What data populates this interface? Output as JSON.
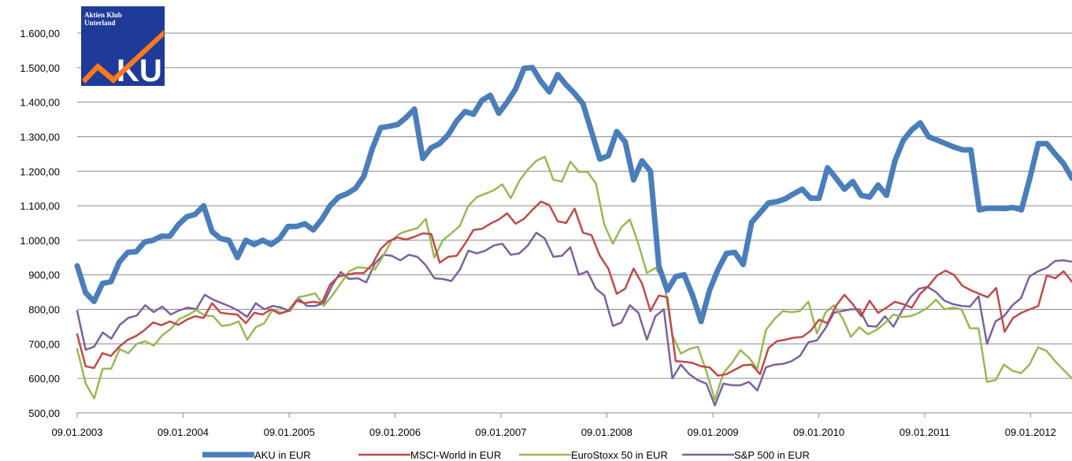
{
  "logo": {
    "line1": "Aktien Klub",
    "line2": "Unterland",
    "mark": "AKU",
    "mark_tail": "KU",
    "bg_color": "#1f3b9a",
    "arrow_color": "#ff7a1a"
  },
  "chart_data": {
    "type": "line",
    "ylim": [
      500,
      1600
    ],
    "yticks": [
      500,
      600,
      700,
      800,
      900,
      1000,
      1100,
      1200,
      1300,
      1400,
      1500,
      1600
    ],
    "ytick_labels": [
      "500,00",
      "600,00",
      "700,00",
      "800,00",
      "900,00",
      "1.000,00",
      "1.100,00",
      "1.200,00",
      "1.300,00",
      "1.400,00",
      "1.500,00",
      "1.600,00"
    ],
    "xlim": [
      "09.01.2003",
      "31.05.2012"
    ],
    "xtick_labels": [
      "09.01.2003",
      "09.01.2004",
      "09.01.2005",
      "09.01.2006",
      "09.01.2007",
      "09.01.2008",
      "09.01.2009",
      "09.01.2010",
      "09.01.2011",
      "09.01.2012"
    ],
    "grid": "horizontal",
    "legend_position": "bottom",
    "series": [
      {
        "name": "AKU in EUR",
        "color": "#4a7ebb",
        "values": [
          926,
          848,
          823,
          875,
          880,
          937,
          965,
          967,
          995,
          1000,
          1012,
          1012,
          1045,
          1068,
          1075,
          1100,
          1025,
          1005,
          1000,
          950,
          1000,
          988,
          1000,
          988,
          1005,
          1040,
          1040,
          1048,
          1030,
          1060,
          1100,
          1125,
          1135,
          1150,
          1185,
          1265,
          1326,
          1330,
          1335,
          1355,
          1380,
          1237,
          1268,
          1280,
          1305,
          1345,
          1373,
          1365,
          1405,
          1420,
          1368,
          1400,
          1438,
          1498,
          1500,
          1460,
          1430,
          1480,
          1450,
          1425,
          1395,
          1315,
          1235,
          1245,
          1315,
          1285,
          1175,
          1230,
          1200,
          925,
          855,
          895,
          900,
          840,
          765,
          855,
          915,
          962,
          965,
          930,
          1052,
          1080,
          1108,
          1112,
          1120,
          1135,
          1148,
          1122,
          1122,
          1210,
          1180,
          1148,
          1170,
          1130,
          1125,
          1160,
          1130,
          1230,
          1290,
          1320,
          1340,
          1300,
          1290,
          1280,
          1270,
          1262,
          1262,
          1088,
          1093,
          1093,
          1092,
          1095,
          1088,
          1180,
          1280,
          1280,
          1250,
          1222,
          1180
        ]
      },
      {
        "name": "MSCI-World in EUR",
        "color": "#be4b48",
        "values": [
          728,
          635,
          630,
          673,
          665,
          692,
          712,
          723,
          740,
          762,
          754,
          765,
          755,
          770,
          780,
          775,
          818,
          790,
          787,
          785,
          760,
          790,
          785,
          800,
          787,
          795,
          825,
          818,
          822,
          818,
          872,
          895,
          900,
          905,
          905,
          930,
          975,
          998,
          1008,
          1002,
          1010,
          1020,
          1018,
          935,
          952,
          955,
          990,
          1030,
          1033,
          1048,
          1060,
          1078,
          1048,
          1062,
          1088,
          1112,
          1102,
          1055,
          1050,
          1092,
          1022,
          1015,
          955,
          918,
          845,
          860,
          918,
          875,
          795,
          840,
          835,
          650,
          648,
          645,
          635,
          632,
          608,
          612,
          625,
          638,
          640,
          612,
          688,
          708,
          712,
          718,
          720,
          738,
          770,
          760,
          810,
          842,
          815,
          780,
          825,
          790,
          805,
          822,
          815,
          805,
          845,
          868,
          898,
          912,
          900,
          868,
          855,
          845,
          835,
          862,
          735,
          775,
          790,
          800,
          810,
          898,
          890,
          910,
          880
        ]
      },
      {
        "name": "EuroStoxx 50 in EUR",
        "color": "#98b954",
        "values": [
          685,
          585,
          542,
          628,
          628,
          685,
          673,
          700,
          708,
          695,
          725,
          743,
          772,
          783,
          798,
          782,
          780,
          752,
          755,
          765,
          712,
          748,
          760,
          800,
          790,
          798,
          835,
          840,
          846,
          810,
          840,
          875,
          910,
          922,
          920,
          915,
          955,
          1000,
          1020,
          1028,
          1035,
          1062,
          950,
          1000,
          1020,
          1042,
          1100,
          1125,
          1135,
          1145,
          1162,
          1122,
          1172,
          1205,
          1230,
          1242,
          1175,
          1170,
          1228,
          1198,
          1198,
          1165,
          1045,
          990,
          1038,
          1060,
          990,
          905,
          920,
          885,
          725,
          672,
          685,
          692,
          620,
          538,
          615,
          645,
          682,
          660,
          628,
          740,
          772,
          795,
          792,
          795,
          822,
          730,
          790,
          812,
          775,
          720,
          748,
          728,
          740,
          760,
          785,
          778,
          780,
          790,
          805,
          828,
          800,
          805,
          800,
          745,
          745,
          590,
          595,
          640,
          622,
          615,
          640,
          690,
          680,
          650,
          625,
          600
        ]
      },
      {
        "name": "S&P 500 in EUR",
        "color": "#7d60a0",
        "values": [
          795,
          683,
          692,
          733,
          715,
          755,
          775,
          782,
          812,
          792,
          808,
          785,
          797,
          805,
          800,
          842,
          828,
          818,
          808,
          795,
          778,
          818,
          800,
          810,
          805,
          795,
          832,
          810,
          810,
          818,
          870,
          908,
          888,
          890,
          878,
          932,
          958,
          955,
          942,
          958,
          952,
          928,
          890,
          888,
          882,
          915,
          970,
          962,
          970,
          985,
          990,
          958,
          962,
          985,
          1022,
          1005,
          952,
          955,
          980,
          900,
          910,
          860,
          840,
          752,
          762,
          812,
          790,
          712,
          780,
          800,
          600,
          640,
          612,
          595,
          585,
          522,
          585,
          580,
          580,
          590,
          565,
          632,
          640,
          642,
          650,
          665,
          705,
          710,
          745,
          790,
          795,
          800,
          800,
          752,
          750,
          780,
          750,
          795,
          835,
          860,
          865,
          850,
          825,
          815,
          810,
          808,
          838,
          700,
          765,
          780,
          812,
          832,
          895,
          910,
          920,
          940,
          942,
          938
        ]
      }
    ]
  }
}
